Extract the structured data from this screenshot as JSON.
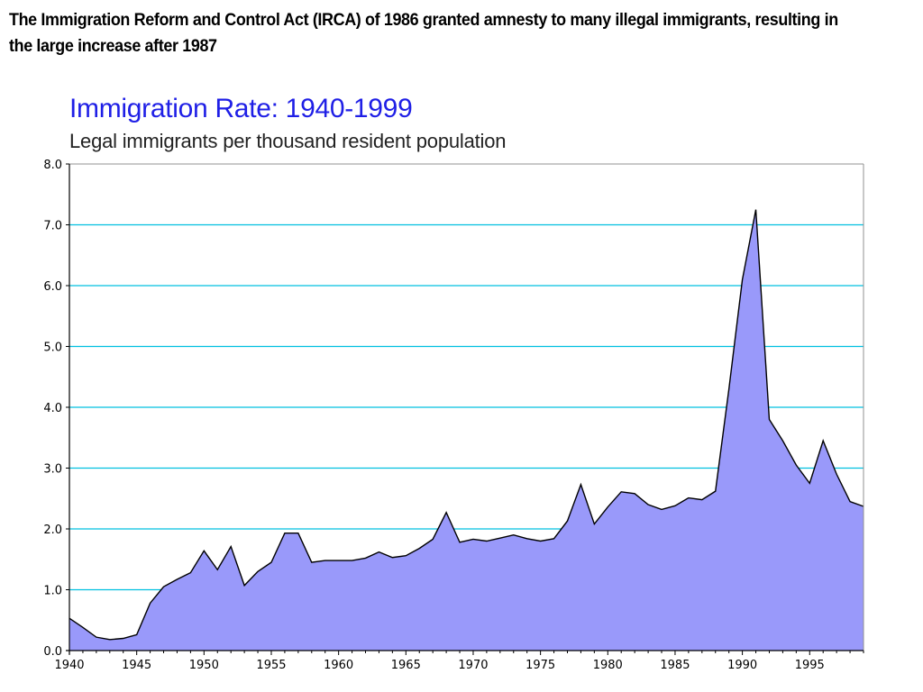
{
  "caption": "The Immigration Reform and Control Act (IRCA) of 1986 granted amnesty to many illegal immigrants, resulting in the large increase after 1987",
  "colors": {
    "area_fill": "#9999fa",
    "area_line": "#000000",
    "gridline": "#00c0e0",
    "title": "#1f1fe6"
  },
  "chart_data": {
    "type": "area",
    "title": "Immigration Rate: 1940-1999",
    "subtitle": "Legal immigrants per thousand resident population",
    "xlabel": "",
    "ylabel": "",
    "xlim": [
      1940,
      1999
    ],
    "ylim": [
      0,
      8
    ],
    "grid": true,
    "y_ticks": [
      "0.0",
      "1.0",
      "2.0",
      "3.0",
      "4.0",
      "5.0",
      "6.0",
      "7.0",
      "8.0"
    ],
    "x_ticks": [
      "1940",
      "1945",
      "1950",
      "1955",
      "1960",
      "1965",
      "1970",
      "1975",
      "1980",
      "1985",
      "1990",
      "1995"
    ],
    "series": [
      {
        "name": "Legal immigrants per thousand resident population",
        "x": [
          1940,
          1941,
          1942,
          1943,
          1944,
          1945,
          1946,
          1947,
          1948,
          1949,
          1950,
          1951,
          1952,
          1953,
          1954,
          1955,
          1956,
          1957,
          1958,
          1959,
          1960,
          1961,
          1962,
          1963,
          1964,
          1965,
          1966,
          1967,
          1968,
          1969,
          1970,
          1971,
          1972,
          1973,
          1974,
          1975,
          1976,
          1977,
          1978,
          1979,
          1980,
          1981,
          1982,
          1983,
          1984,
          1985,
          1986,
          1987,
          1988,
          1989,
          1990,
          1991,
          1992,
          1993,
          1994,
          1995,
          1996,
          1997,
          1998,
          1999
        ],
        "values": [
          0.53,
          0.38,
          0.22,
          0.18,
          0.2,
          0.26,
          0.78,
          1.05,
          1.17,
          1.28,
          1.64,
          1.33,
          1.71,
          1.07,
          1.3,
          1.45,
          1.93,
          1.93,
          1.45,
          1.48,
          1.48,
          1.48,
          1.52,
          1.62,
          1.53,
          1.56,
          1.68,
          1.83,
          2.27,
          1.78,
          1.83,
          1.8,
          1.85,
          1.9,
          1.84,
          1.8,
          1.84,
          2.13,
          2.73,
          2.08,
          2.36,
          2.61,
          2.58,
          2.4,
          2.32,
          2.38,
          2.51,
          2.48,
          2.62,
          4.3,
          6.1,
          7.25,
          3.8,
          3.45,
          3.05,
          2.75,
          3.45,
          2.9,
          2.45,
          2.37
        ]
      }
    ]
  }
}
